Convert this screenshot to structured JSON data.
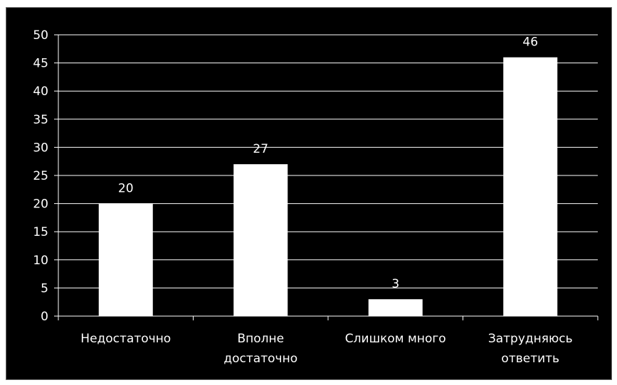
{
  "chart_data": {
    "type": "bar",
    "categories": [
      [
        "Недостаточно"
      ],
      [
        "Вполне",
        "достаточно"
      ],
      [
        "Слишком много"
      ],
      [
        "Затрудняюсь",
        "ответить"
      ]
    ],
    "values": [
      20,
      27,
      3,
      46
    ],
    "data_labels": [
      "20",
      "27",
      "3",
      "46"
    ],
    "y_ticks": [
      "0",
      "5",
      "10",
      "15",
      "20",
      "25",
      "30",
      "35",
      "40",
      "45",
      "50"
    ],
    "ylim": [
      0,
      50
    ],
    "grid": true,
    "legend": "none",
    "colors": {
      "background": "#000000",
      "bar": "#ffffff",
      "grid": "#ffffff",
      "text": "#ffffff"
    }
  }
}
